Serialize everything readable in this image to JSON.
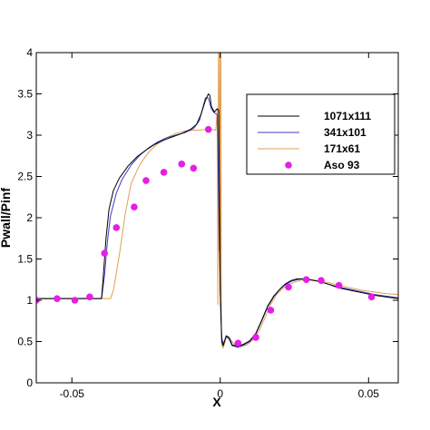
{
  "chart_data": {
    "type": "line",
    "xlabel": "X",
    "ylabel": "Pwall/Pinf",
    "xlim": [
      -0.062,
      0.06
    ],
    "ylim": [
      0,
      4
    ],
    "x_ticks": [
      -0.05,
      0,
      0.05
    ],
    "x_tick_labels": [
      "-0.05",
      "0",
      "0.05"
    ],
    "y_ticks": [
      0,
      0.5,
      1,
      1.5,
      2,
      2.5,
      3,
      3.5,
      4
    ],
    "y_tick_labels": [
      "0",
      "0.5",
      "1",
      "1.5",
      "2",
      "2.5",
      "3",
      "3.5",
      "4"
    ],
    "grid": false,
    "legend_position": "right",
    "series": [
      {
        "name": "1071x111",
        "kind": "line",
        "color": "#000000",
        "x": [
          -0.062,
          -0.04,
          -0.0395,
          -0.0385,
          -0.0375,
          -0.036,
          -0.034,
          -0.031,
          -0.028,
          -0.025,
          -0.022,
          -0.019,
          -0.016,
          -0.013,
          -0.01,
          -0.008,
          -0.0065,
          -0.005,
          -0.004,
          -0.0035,
          -0.003,
          -0.002,
          -0.001,
          -0.0005,
          0.0,
          0.0005,
          0.001,
          0.002,
          0.003,
          0.004,
          0.006,
          0.008,
          0.01,
          0.012,
          0.014,
          0.016,
          0.018,
          0.02,
          0.022,
          0.024,
          0.026,
          0.028,
          0.03,
          0.033,
          0.036,
          0.04,
          0.044,
          0.048,
          0.052,
          0.056,
          0.06
        ],
        "y": [
          1.02,
          1.02,
          1.25,
          1.75,
          2.1,
          2.33,
          2.48,
          2.63,
          2.74,
          2.82,
          2.89,
          2.94,
          2.98,
          3.02,
          3.07,
          3.13,
          3.25,
          3.42,
          3.5,
          3.48,
          3.35,
          3.28,
          3.32,
          3.3,
          1.1,
          0.5,
          0.45,
          0.57,
          0.55,
          0.46,
          0.44,
          0.47,
          0.51,
          0.6,
          0.76,
          0.93,
          1.05,
          1.13,
          1.2,
          1.24,
          1.26,
          1.26,
          1.25,
          1.23,
          1.2,
          1.15,
          1.12,
          1.09,
          1.06,
          1.04,
          1.02
        ]
      },
      {
        "name": "341x101",
        "kind": "line",
        "color": "#3b3bc8",
        "x": [
          -0.062,
          -0.04,
          -0.039,
          -0.038,
          -0.037,
          -0.035,
          -0.033,
          -0.03,
          -0.027,
          -0.024,
          -0.021,
          -0.018,
          -0.015,
          -0.012,
          -0.009,
          -0.007,
          -0.005,
          -0.004,
          -0.003,
          -0.002,
          -0.001,
          0.0,
          0.0005,
          0.001,
          0.002,
          0.003,
          0.004,
          0.006,
          0.008,
          0.01,
          0.012,
          0.014,
          0.016,
          0.018,
          0.02,
          0.022,
          0.024,
          0.026,
          0.028,
          0.03,
          0.033,
          0.036,
          0.04,
          0.044,
          0.048,
          0.052,
          0.056,
          0.06
        ],
        "y": [
          1.02,
          1.02,
          1.3,
          1.72,
          2.02,
          2.3,
          2.47,
          2.64,
          2.76,
          2.85,
          2.92,
          2.97,
          3.0,
          3.03,
          3.08,
          3.18,
          3.45,
          3.45,
          3.32,
          3.27,
          3.25,
          1.1,
          0.55,
          0.47,
          0.56,
          0.53,
          0.45,
          0.43,
          0.46,
          0.5,
          0.59,
          0.75,
          0.92,
          1.04,
          1.13,
          1.19,
          1.23,
          1.25,
          1.26,
          1.25,
          1.23,
          1.2,
          1.16,
          1.13,
          1.1,
          1.07,
          1.05,
          1.03
        ]
      },
      {
        "name": "171x61",
        "kind": "line",
        "color": "#e0a050",
        "x": [
          -0.062,
          -0.037,
          -0.036,
          -0.034,
          -0.032,
          -0.03,
          -0.027,
          -0.024,
          -0.021,
          -0.018,
          -0.015,
          -0.012,
          -0.009,
          -0.007,
          -0.005,
          -0.003,
          -0.0015,
          -0.001,
          -0.0008,
          -0.0006,
          -0.0004,
          -0.0002,
          0.0,
          0.0002,
          0.0004,
          0.0006,
          0.001,
          0.002,
          0.003,
          0.005,
          0.007,
          0.009,
          0.011,
          0.013,
          0.015,
          0.017,
          0.019,
          0.021,
          0.023,
          0.025,
          0.027,
          0.029,
          0.031,
          0.034,
          0.037,
          0.04,
          0.044,
          0.048,
          0.052,
          0.056,
          0.06
        ],
        "y": [
          1.02,
          1.02,
          1.12,
          1.55,
          2.05,
          2.42,
          2.65,
          2.8,
          2.9,
          2.97,
          3.02,
          3.05,
          3.06,
          3.06,
          3.07,
          3.07,
          3.06,
          3.3,
          0.95,
          4.0,
          1.6,
          4.0,
          1.1,
          4.0,
          0.6,
          0.45,
          0.42,
          0.55,
          0.54,
          0.46,
          0.44,
          0.46,
          0.52,
          0.62,
          0.78,
          0.95,
          1.07,
          1.14,
          1.19,
          1.22,
          1.24,
          1.25,
          1.25,
          1.23,
          1.21,
          1.18,
          1.15,
          1.12,
          1.1,
          1.08,
          1.07
        ]
      },
      {
        "name": "Aso 93",
        "kind": "scatter",
        "color": "#e61ee6",
        "x": [
          -0.062,
          -0.055,
          -0.049,
          -0.044,
          -0.039,
          -0.035,
          -0.029,
          -0.025,
          -0.019,
          -0.013,
          -0.009,
          -0.004,
          0.006,
          0.012,
          0.017,
          0.023,
          0.029,
          0.034,
          0.04,
          0.051
        ],
        "y": [
          1.0,
          1.02,
          1.0,
          1.04,
          1.57,
          1.88,
          2.13,
          2.45,
          2.55,
          2.65,
          2.6,
          3.07,
          0.48,
          0.55,
          0.88,
          1.16,
          1.25,
          1.24,
          1.18,
          1.04
        ]
      }
    ]
  }
}
